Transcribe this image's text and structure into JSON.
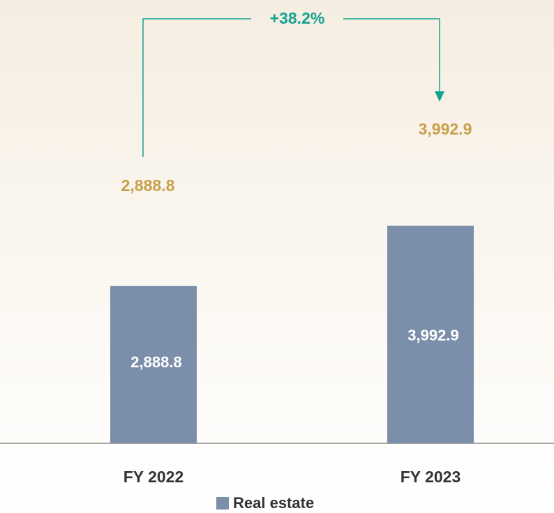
{
  "chart_data": {
    "type": "bar",
    "categories": [
      "FY 2022",
      "FY 2023"
    ],
    "series": [
      {
        "name": "Real estate",
        "color": "#7b8fab",
        "values": [
          2888.8,
          3992.9
        ],
        "value_labels": [
          "2,888.8",
          "3,992.9"
        ]
      }
    ],
    "annotation": "+38.2%",
    "annotation_color": "#14a38f",
    "total_label_color": "#c9a04a",
    "legend": "bottom"
  }
}
